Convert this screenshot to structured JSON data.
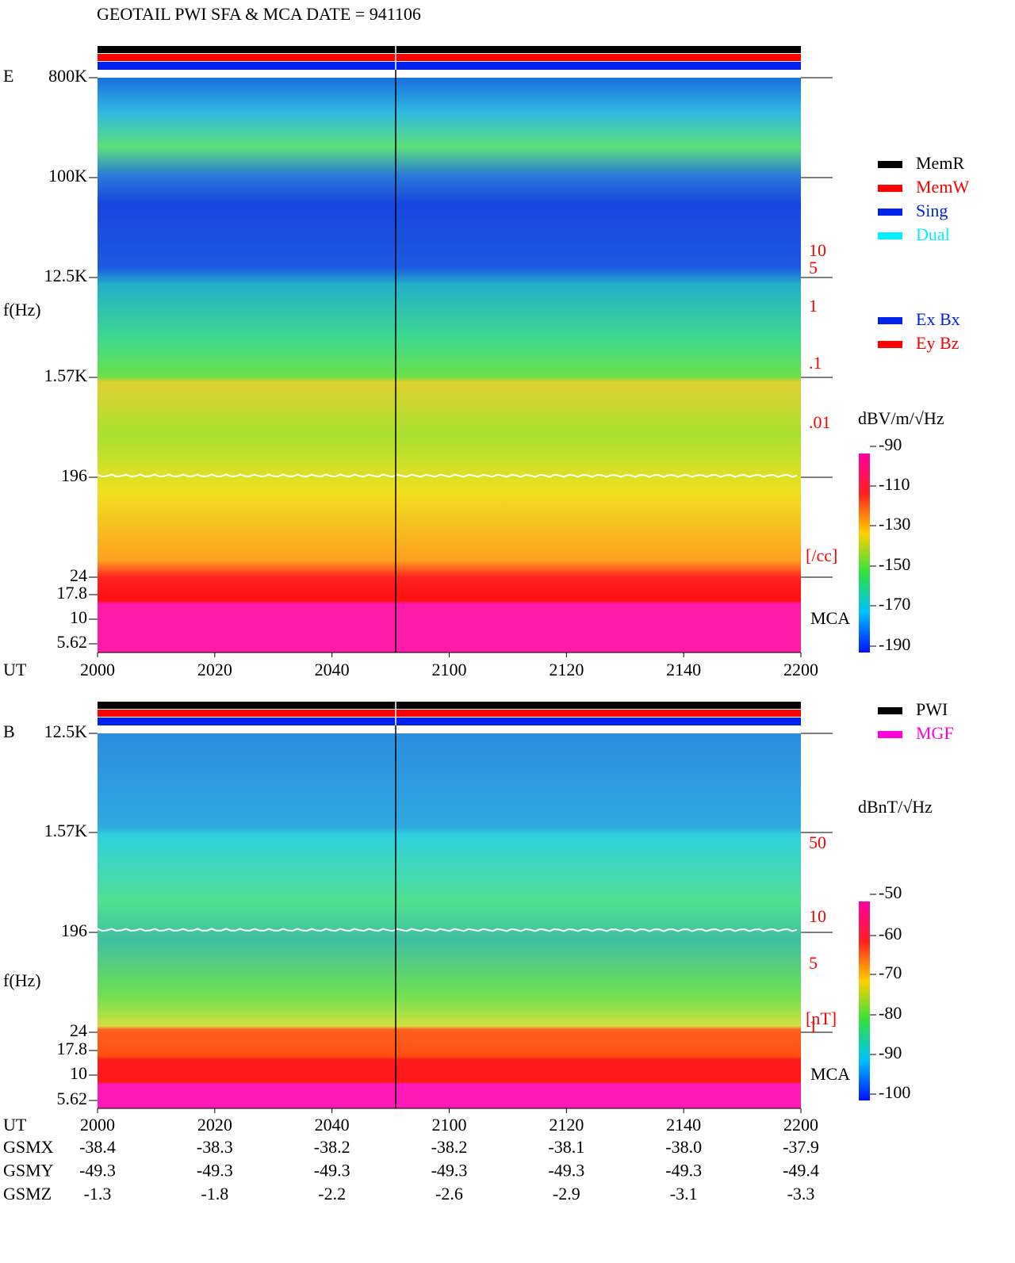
{
  "title": "GEOTAIL  PWI SFA & MCA   DATE = 941106",
  "panels": [
    {
      "label": "E",
      "y_label": "f(Hz)",
      "x_label": "UT",
      "freq_ticks": [
        "800K",
        "100K",
        "12.5K",
        "1.57K",
        "196",
        "24",
        "17.8",
        "10",
        "5.62"
      ],
      "time_ticks": [
        "2000",
        "2020",
        "2040",
        "2100",
        "2120",
        "2140",
        "2200"
      ],
      "right_ticks": [
        "10",
        "5",
        "1",
        ".1",
        ".01"
      ],
      "right_unit": "[/cc]",
      "mca": "MCA",
      "colorbar_title": "dBV/m/√Hz",
      "colorbar_ticks": [
        "-90",
        "-110",
        "-130",
        "-150",
        "-170",
        "-190"
      ]
    },
    {
      "label": "B",
      "y_label": "f(Hz)",
      "x_label": "UT",
      "freq_ticks": [
        "12.5K",
        "1.57K",
        "196",
        "24",
        "17.8",
        "10",
        "5.62"
      ],
      "time_ticks": [
        "2000",
        "2020",
        "2040",
        "2100",
        "2120",
        "2140",
        "2200"
      ],
      "right_ticks": [
        "50",
        "10",
        "5",
        "1"
      ],
      "right_unit": "[nT]",
      "mca": "MCA",
      "colorbar_title": "dBnT/√Hz",
      "colorbar_ticks": [
        "-50",
        "-60",
        "-70",
        "-80",
        "-90",
        "-100"
      ]
    }
  ],
  "legend_mode": [
    {
      "label": "MemR",
      "color": "#000000"
    },
    {
      "label": "MemW",
      "color": "#ff0000"
    },
    {
      "label": "Sing",
      "color": "#0022ee"
    },
    {
      "label": "Dual",
      "color": "#00eeff"
    }
  ],
  "legend_component": [
    {
      "label": "Ex Bx",
      "color": "#0022ee"
    },
    {
      "label": "Ey Bz",
      "color": "#ff0000"
    }
  ],
  "legend_source": [
    {
      "label": "PWI",
      "color": "#000000"
    },
    {
      "label": "MGF",
      "color": "#ff00dd"
    }
  ],
  "orbit": [
    {
      "label": "GSMX",
      "values": [
        "-38.4",
        "-38.3",
        "-38.2",
        "-38.2",
        "-38.1",
        "-38.0",
        "-37.9"
      ]
    },
    {
      "label": "GSMY",
      "values": [
        "-49.3",
        "-49.3",
        "-49.3",
        "-49.3",
        "-49.3",
        "-49.3",
        "-49.4"
      ]
    },
    {
      "label": "GSMZ",
      "values": [
        "-1.3",
        "-1.8",
        "-2.2",
        "-2.6",
        "-2.9",
        "-3.1",
        "-3.3"
      ]
    }
  ]
}
